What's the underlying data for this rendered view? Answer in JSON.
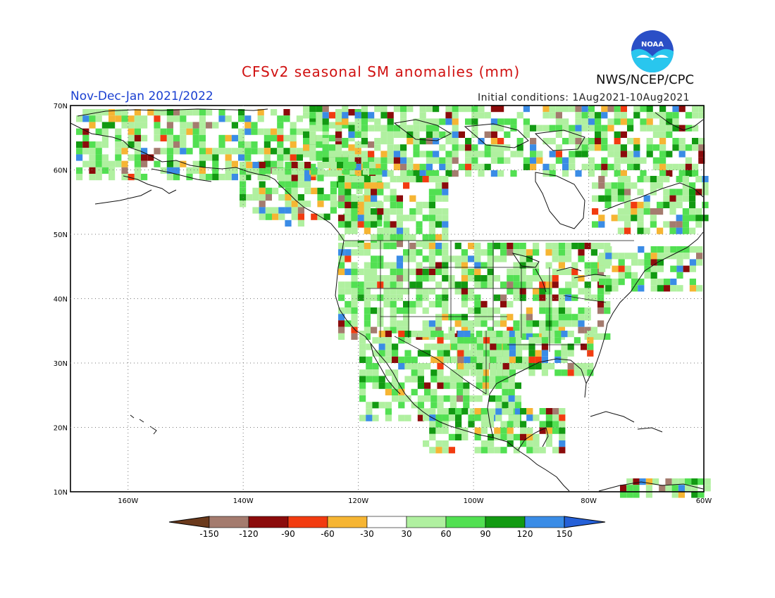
{
  "header": {
    "title": "CFSv2 seasonal SM anomalies (mm)",
    "period": "Nov-Dec-Jan 2021/2022",
    "initial_conditions": "Initial conditions: 1Aug2021-10Aug2021",
    "agency": "NWS/NCEP/CPC",
    "logo_text": "NOAA"
  },
  "map": {
    "region": "North America",
    "lon_range": [
      -170,
      -60
    ],
    "lat_range": [
      10,
      70
    ],
    "lon_ticks": [
      "160W",
      "140W",
      "120W",
      "100W",
      "80W",
      "60W"
    ],
    "lat_ticks": [
      "70N",
      "60N",
      "50N",
      "40N",
      "30N",
      "20N",
      "10N"
    ],
    "gridlines": "dotted"
  },
  "legend": {
    "labels": [
      "-150",
      "-120",
      "-90",
      "-60",
      "-30",
      "30",
      "60",
      "90",
      "120",
      "150"
    ],
    "colors": [
      "#6b3a1c",
      "#a47b6e",
      "#8b0b0b",
      "#f23b10",
      "#f6b533",
      "#ffffff",
      "#b0f0a0",
      "#52e052",
      "#129a12",
      "#3a8ce6",
      "#2560d8"
    ]
  }
}
